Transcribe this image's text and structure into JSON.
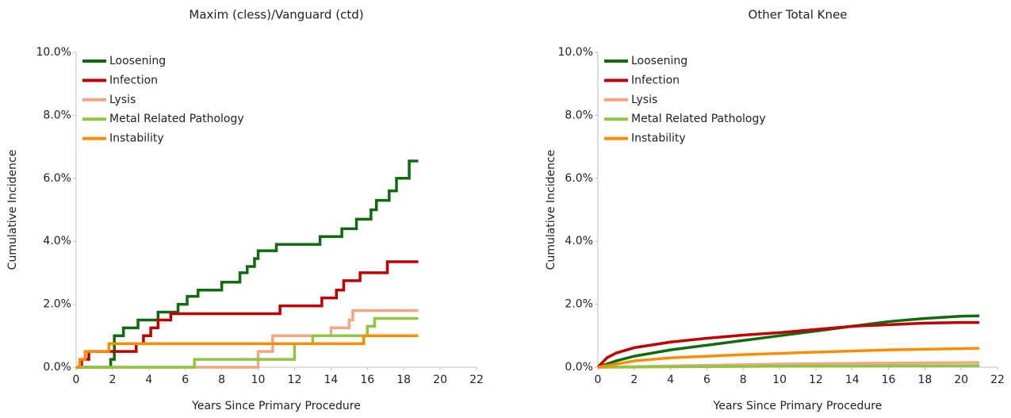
{
  "chart_data": [
    {
      "type": "line",
      "step": true,
      "title": "Maxim (cless)/Vanguard (ctd)",
      "xlabel": "Years Since Primary Procedure",
      "ylabel": "Cumulative Incidence",
      "xlim": [
        0,
        22
      ],
      "ylim": [
        0,
        10
      ],
      "xticks": [
        0,
        2,
        4,
        6,
        8,
        10,
        12,
        14,
        16,
        18,
        20,
        22
      ],
      "yticks": [
        {
          "value": 0,
          "label": "0.0%"
        },
        {
          "value": 2,
          "label": "2.0%"
        },
        {
          "value": 4,
          "label": "4.0%"
        },
        {
          "value": 6,
          "label": "6.0%"
        },
        {
          "value": 8,
          "label": "8.0%"
        },
        {
          "value": 10,
          "label": "10.0%"
        }
      ],
      "legend": "upper left",
      "series": [
        {
          "name": "Loosening",
          "color": "#0e6b0e",
          "x": [
            0,
            1.9,
            2.1,
            2.6,
            3.4,
            4.5,
            5.6,
            6.1,
            6.7,
            8.0,
            9.0,
            9.4,
            9.8,
            10.0,
            11.0,
            13.4,
            14.6,
            15.4,
            16.2,
            16.5,
            17.2,
            17.6,
            18.3,
            18.8
          ],
          "values": [
            0,
            0.25,
            1.0,
            1.25,
            1.5,
            1.75,
            2.0,
            2.25,
            2.45,
            2.7,
            3.0,
            3.2,
            3.45,
            3.7,
            3.9,
            4.15,
            4.4,
            4.7,
            5.0,
            5.3,
            5.6,
            6.0,
            6.55,
            6.55
          ]
        },
        {
          "name": "Infection",
          "color": "#c00000",
          "x": [
            0,
            0.3,
            0.7,
            3.3,
            3.7,
            4.1,
            4.5,
            5.2,
            11.2,
            13.5,
            14.3,
            14.7,
            15.6,
            17.1,
            18.8
          ],
          "values": [
            0,
            0.25,
            0.5,
            0.75,
            1.0,
            1.25,
            1.5,
            1.7,
            1.95,
            2.2,
            2.45,
            2.75,
            3.0,
            3.35,
            3.35
          ]
        },
        {
          "name": "Lysis",
          "color": "#f4a582",
          "x": [
            0,
            10.0,
            10.8,
            14.0,
            15.0,
            15.2,
            18.8
          ],
          "values": [
            0,
            0.5,
            1.0,
            1.25,
            1.5,
            1.8,
            1.8
          ]
        },
        {
          "name": "Metal Related Pathology",
          "color": "#8dc63f",
          "x": [
            0,
            6.5,
            12.0,
            13.0,
            16.0,
            16.4,
            18.8
          ],
          "values": [
            0,
            0.25,
            0.75,
            1.0,
            1.3,
            1.55,
            1.55
          ]
        },
        {
          "name": "Instability",
          "color": "#ff8c00",
          "x": [
            0,
            0.2,
            0.5,
            1.8,
            15.8,
            18.8
          ],
          "values": [
            0,
            0.25,
            0.5,
            0.75,
            1.0,
            1.0
          ]
        }
      ]
    },
    {
      "type": "line",
      "step": false,
      "title": "Other Total Knee",
      "xlabel": "Years Since Primary Procedure",
      "ylabel": "Cumulative Incidence",
      "xlim": [
        0,
        22
      ],
      "ylim": [
        0,
        10
      ],
      "xticks": [
        0,
        2,
        4,
        6,
        8,
        10,
        12,
        14,
        16,
        18,
        20,
        22
      ],
      "yticks": [
        {
          "value": 0,
          "label": "0.0%"
        },
        {
          "value": 2,
          "label": "2.0%"
        },
        {
          "value": 4,
          "label": "4.0%"
        },
        {
          "value": 6,
          "label": "6.0%"
        },
        {
          "value": 8,
          "label": "8.0%"
        },
        {
          "value": 10,
          "label": "10.0%"
        }
      ],
      "legend": "upper left",
      "series": [
        {
          "name": "Loosening",
          "color": "#0e6b0e",
          "x": [
            0,
            1,
            2,
            4,
            6,
            8,
            10,
            12,
            14,
            16,
            18,
            20,
            21
          ],
          "values": [
            0,
            0.2,
            0.35,
            0.55,
            0.7,
            0.85,
            1.0,
            1.15,
            1.3,
            1.45,
            1.55,
            1.62,
            1.63
          ]
        },
        {
          "name": "Infection",
          "color": "#c00000",
          "x": [
            0,
            0.5,
            1,
            2,
            4,
            6,
            8,
            10,
            12,
            14,
            16,
            18,
            20,
            21
          ],
          "values": [
            0,
            0.3,
            0.45,
            0.62,
            0.8,
            0.92,
            1.02,
            1.1,
            1.2,
            1.3,
            1.35,
            1.4,
            1.42,
            1.42
          ]
        },
        {
          "name": "Lysis",
          "color": "#f4a582",
          "x": [
            0,
            5,
            10,
            15,
            21
          ],
          "values": [
            0,
            0.05,
            0.1,
            0.13,
            0.15
          ]
        },
        {
          "name": "Metal Related Pathology",
          "color": "#8dc63f",
          "x": [
            0,
            10,
            21
          ],
          "values": [
            0,
            0.03,
            0.05
          ]
        },
        {
          "name": "Instability",
          "color": "#ff8c00",
          "x": [
            0,
            2,
            4,
            8,
            12,
            16,
            21
          ],
          "values": [
            0,
            0.2,
            0.3,
            0.4,
            0.48,
            0.55,
            0.6
          ]
        }
      ]
    }
  ]
}
